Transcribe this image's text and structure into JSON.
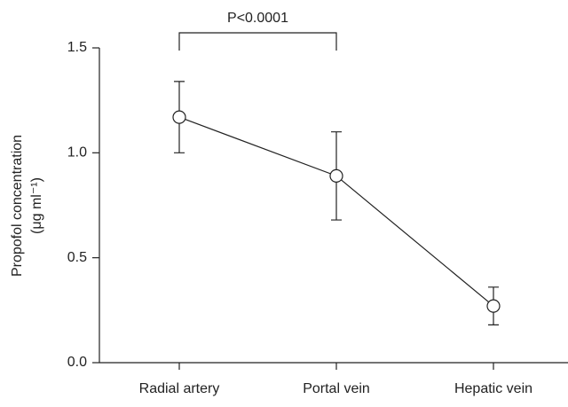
{
  "chart_data": {
    "type": "line",
    "ylabel": [
      "Propofol concentration",
      "(μg ml⁻¹)"
    ],
    "annotation": "P<0.0001",
    "categories": [
      "Radial artery",
      "Portal vein",
      "Hepatic vein"
    ],
    "values": [
      1.17,
      0.89,
      0.27
    ],
    "errors": [
      0.17,
      0.21,
      0.09
    ],
    "color": "#222222",
    "ylim": [
      0,
      1.5
    ],
    "yticks": [
      {
        "value": 0,
        "label": "0.0"
      },
      0.5,
      {
        "value": 1,
        "label": "1.0"
      },
      1.5
    ]
  }
}
